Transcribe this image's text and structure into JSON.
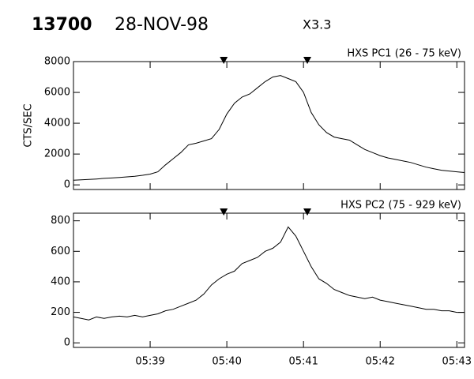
{
  "header": {
    "number": "13700",
    "date": "28-NOV-98",
    "class": "X3.3"
  },
  "chart_data": [
    {
      "type": "line",
      "title": "HXS PC1 (26 - 75 keV)",
      "y_label": "CTS/SEC",
      "color": "#000000",
      "markers": [
        39.96,
        41.05
      ],
      "x": [
        38.0,
        38.1,
        38.2,
        38.3,
        38.4,
        38.5,
        38.6,
        38.7,
        38.8,
        38.9,
        39.0,
        39.1,
        39.2,
        39.3,
        39.4,
        39.5,
        39.6,
        39.7,
        39.8,
        39.9,
        40.0,
        40.1,
        40.2,
        40.3,
        40.4,
        40.5,
        40.6,
        40.7,
        40.8,
        40.9,
        41.0,
        41.1,
        41.2,
        41.3,
        41.4,
        41.5,
        41.6,
        41.7,
        41.8,
        41.9,
        42.0,
        42.1,
        42.2,
        42.3,
        42.4,
        42.5,
        42.6,
        42.7,
        42.8,
        42.9,
        43.0,
        43.1
      ],
      "values": [
        300,
        330,
        350,
        380,
        420,
        450,
        480,
        520,
        560,
        620,
        700,
        850,
        1300,
        1700,
        2100,
        2600,
        2700,
        2850,
        3000,
        3600,
        4600,
        5300,
        5700,
        5900,
        6300,
        6700,
        7000,
        7100,
        6900,
        6700,
        6000,
        4700,
        3900,
        3400,
        3100,
        3000,
        2900,
        2600,
        2300,
        2100,
        1900,
        1750,
        1650,
        1550,
        1450,
        1300,
        1150,
        1050,
        950,
        900,
        850,
        800
      ],
      "xlim": [
        38.0,
        43.1
      ],
      "ylim": [
        -300,
        8000
      ],
      "yticks": [
        0,
        2000,
        4000,
        6000,
        8000
      ]
    },
    {
      "type": "line",
      "title": "HXS PC2 (75 - 929 keV)",
      "color": "#000000",
      "markers": [
        39.96,
        41.05
      ],
      "x": [
        38.0,
        38.1,
        38.2,
        38.3,
        38.4,
        38.5,
        38.6,
        38.7,
        38.8,
        38.9,
        39.0,
        39.1,
        39.2,
        39.3,
        39.4,
        39.5,
        39.6,
        39.7,
        39.8,
        39.9,
        40.0,
        40.1,
        40.2,
        40.3,
        40.4,
        40.5,
        40.6,
        40.7,
        40.8,
        40.9,
        41.0,
        41.1,
        41.2,
        41.3,
        41.4,
        41.5,
        41.6,
        41.7,
        41.8,
        41.9,
        42.0,
        42.1,
        42.2,
        42.3,
        42.4,
        42.5,
        42.6,
        42.7,
        42.8,
        42.9,
        43.0,
        43.1
      ],
      "values": [
        170,
        160,
        150,
        170,
        160,
        170,
        175,
        170,
        180,
        170,
        180,
        190,
        210,
        220,
        240,
        260,
        280,
        320,
        380,
        420,
        450,
        470,
        520,
        540,
        560,
        600,
        620,
        660,
        760,
        700,
        600,
        500,
        420,
        390,
        350,
        330,
        310,
        300,
        290,
        300,
        280,
        270,
        260,
        250,
        240,
        230,
        220,
        220,
        210,
        210,
        200,
        200
      ],
      "xlim": [
        38.0,
        43.1
      ],
      "ylim": [
        -30,
        850
      ],
      "yticks": [
        0,
        200,
        400,
        600,
        800
      ],
      "xticks": [
        {
          "value": 39,
          "label": "05:39"
        },
        {
          "value": 40,
          "label": "05:40"
        },
        {
          "value": 41,
          "label": "05:41"
        },
        {
          "value": 42,
          "label": "05:42"
        },
        {
          "value": 43,
          "label": "05:43"
        }
      ]
    }
  ]
}
